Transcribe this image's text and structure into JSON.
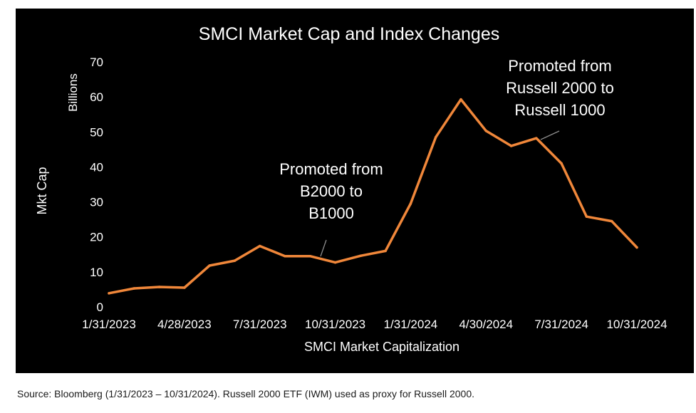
{
  "chart_data": {
    "type": "line",
    "title": "SMCI Market Cap and Index Changes",
    "xlabel": "SMCI Market Capitalization",
    "ylabel": "Mkt Cap",
    "y_unit_label": "Billions",
    "ylim": [
      0,
      70
    ],
    "y_ticks": [
      0,
      10,
      20,
      30,
      40,
      50,
      60,
      70
    ],
    "x_tick_labels": [
      "1/31/2023",
      "4/28/2023",
      "7/31/2023",
      "10/31/2023",
      "1/31/2024",
      "4/30/2024",
      "7/31/2024",
      "10/31/2024"
    ],
    "x_tick_indices": [
      0,
      3,
      6,
      9,
      12,
      15,
      18,
      21
    ],
    "grid": false,
    "series": [
      {
        "color": "#F0873A",
        "x": [
          "1/31/2023",
          "2/28/2023",
          "3/31/2023",
          "4/28/2023",
          "5/31/2023",
          "6/30/2023",
          "7/31/2023",
          "8/31/2023",
          "9/29/2023",
          "10/31/2023",
          "11/30/2023",
          "12/29/2023",
          "1/31/2024",
          "2/29/2024",
          "3/28/2024",
          "4/30/2024",
          "5/31/2024",
          "6/28/2024",
          "7/31/2024",
          "8/30/2024",
          "9/30/2024",
          "10/31/2024"
        ],
        "values": [
          3.9,
          5.3,
          5.7,
          5.5,
          11.8,
          13.2,
          17.4,
          14.5,
          14.5,
          12.7,
          14.6,
          16.0,
          29.5,
          48.5,
          59.3,
          50.3,
          46.0,
          48.2,
          41.0,
          25.8,
          24.5,
          17.0
        ]
      }
    ],
    "annotations": [
      {
        "lines": [
          "Promoted from",
          "B2000 to",
          "B1000"
        ],
        "point_index": 8
      },
      {
        "lines": [
          "Promoted from",
          "Russell 2000 to",
          "Russell 1000"
        ],
        "point_index": 17
      }
    ]
  },
  "footer": {
    "source": "Source: Bloomberg (1/31/2023 – 10/31/2024). Russell 2000 ETF (IWM) used as proxy for Russell 2000."
  }
}
